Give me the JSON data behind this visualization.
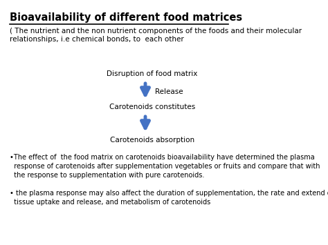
{
  "title": "Bioavailability of different food matrices",
  "subtitle": "( The nutrient and the non nutrient components of the foods and their molecular\nrelationships, i.e chemical bonds, to  each other",
  "flow_items": [
    "Disruption of food matrix",
    "Carotenoids constitutes",
    "Carotenoids absorption"
  ],
  "arrow_label": "Release",
  "bullets": [
    "•The effect of  the food matrix on carotenoids bioavailability have determined the plasma\n  response of carotenoids after supplementation vegetables or fruits and compare that with\n  the response to supplementation with pure carotenoids.",
    "• the plasma response may also affect the duration of supplementation, the rate and extend of\n  tissue uptake and release, and metabolism of carotenoids"
  ],
  "bg_color": "#ffffff",
  "arrow_color": "#4472C4",
  "text_color": "#000000",
  "title_fontsize": 10.5,
  "subtitle_fontsize": 7.5,
  "flow_fontsize": 7.5,
  "bullet_fontsize": 7.0
}
